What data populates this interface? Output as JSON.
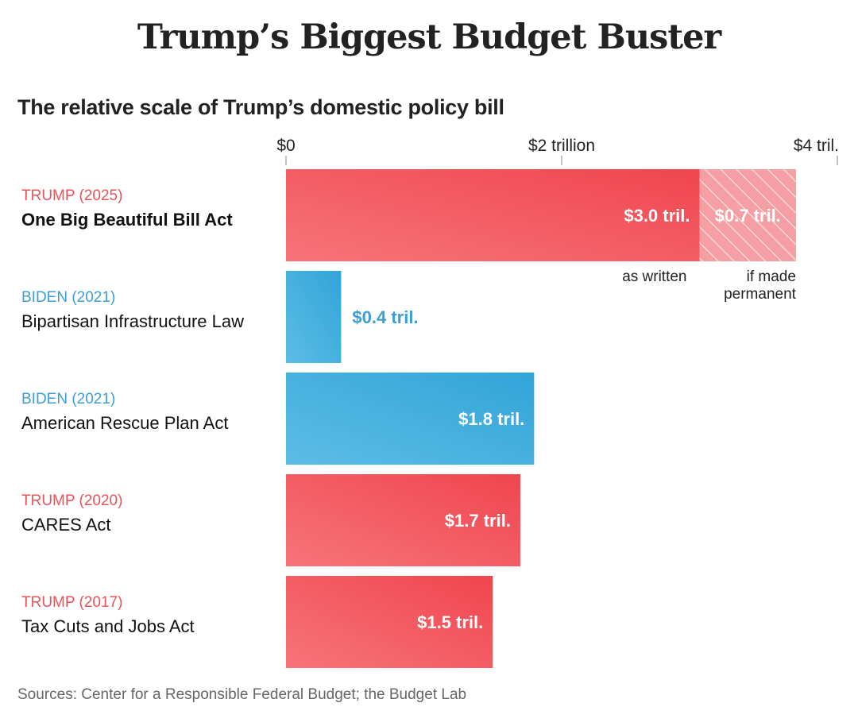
{
  "title": "Trump’s Biggest Budget Buster",
  "subtitle": "The relative scale of Trump’s domestic policy bill",
  "source": "Sources: Center for a Responsible Federal Budget; the Budget Lab",
  "colors": {
    "trump": "#f2545b",
    "trump_light": "#f49aa0",
    "biden": "#3ba8da",
    "trump_label": "#e8535a",
    "biden_label": "#3b9fd6"
  },
  "chart_data": {
    "type": "bar",
    "orientation": "horizontal",
    "xlim": [
      0,
      4
    ],
    "unit": "trillion dollars",
    "ticks": [
      {
        "value": 0,
        "label": "$0"
      },
      {
        "value": 2,
        "label": "$2 trillion"
      },
      {
        "value": 4,
        "label": "$4 tril."
      }
    ],
    "bars": [
      {
        "party": "TRUMP (2025)",
        "name": "One Big Beautiful Bill Act",
        "party_color": "trump",
        "bold": true,
        "segments": [
          {
            "value": 3.0,
            "label": "$3.0 tril.",
            "note": "as written",
            "style": "solid"
          },
          {
            "value": 0.7,
            "label": "$0.7 tril.",
            "note": "if made permanent",
            "style": "hatched"
          }
        ]
      },
      {
        "party": "BIDEN (2021)",
        "name": "Bipartisan Infrastructure Law",
        "party_color": "biden",
        "bold": false,
        "segments": [
          {
            "value": 0.4,
            "label": "$0.4 tril.",
            "style": "solid"
          }
        ]
      },
      {
        "party": "BIDEN (2021)",
        "name": "American Rescue Plan Act",
        "party_color": "biden",
        "bold": false,
        "segments": [
          {
            "value": 1.8,
            "label": "$1.8 tril.",
            "style": "solid"
          }
        ]
      },
      {
        "party": "TRUMP (2020)",
        "name": "CARES Act",
        "party_color": "trump",
        "bold": false,
        "segments": [
          {
            "value": 1.7,
            "label": "$1.7 tril.",
            "style": "solid"
          }
        ]
      },
      {
        "party": "TRUMP (2017)",
        "name": "Tax Cuts and Jobs Act",
        "party_color": "trump",
        "bold": false,
        "segments": [
          {
            "value": 1.5,
            "label": "$1.5 tril.",
            "style": "solid"
          }
        ]
      }
    ]
  }
}
